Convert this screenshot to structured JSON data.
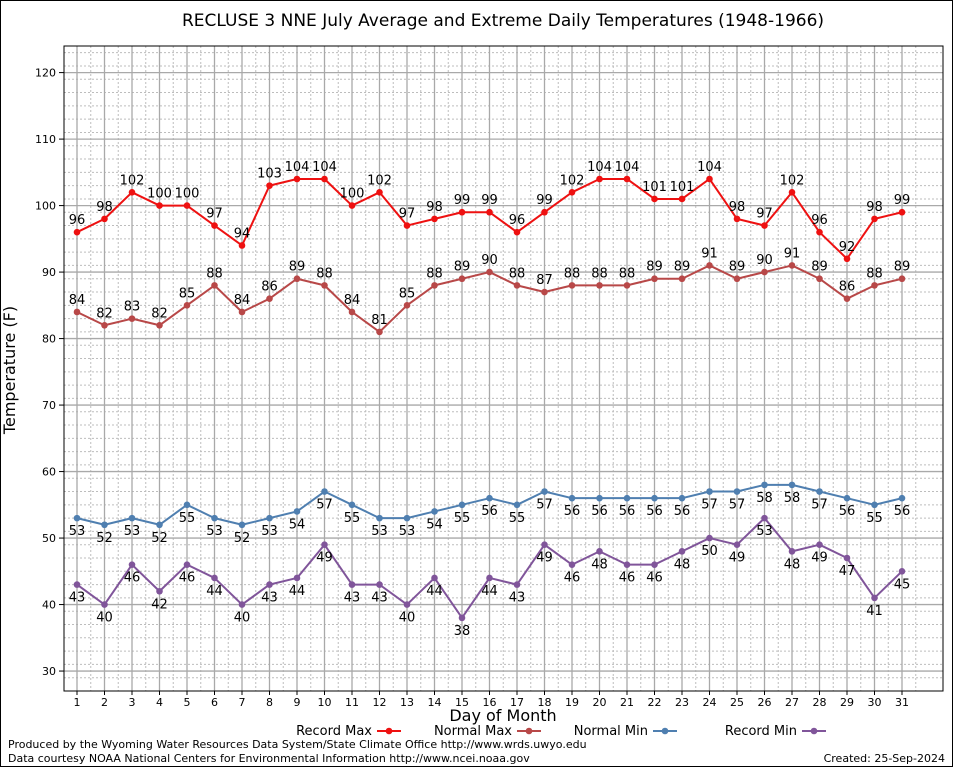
{
  "chart_data": {
    "type": "line",
    "title": "RECLUSE 3 NNE July Average and Extreme Daily Temperatures (1948-1966)",
    "xlabel": "Day of Month",
    "ylabel": "Temperature (F)",
    "ylim": [
      27,
      124
    ],
    "yticks": [
      30,
      40,
      50,
      60,
      70,
      80,
      90,
      100,
      110,
      120
    ],
    "x": [
      1,
      2,
      3,
      4,
      5,
      6,
      7,
      8,
      9,
      10,
      11,
      12,
      13,
      14,
      15,
      16,
      17,
      18,
      19,
      20,
      21,
      22,
      23,
      24,
      25,
      26,
      27,
      28,
      29,
      30,
      31
    ],
    "grid": true,
    "legend_position": "bottom",
    "series": [
      {
        "name": "Record Max",
        "color": "#ee1111",
        "label_pos": "above",
        "values": [
          96,
          98,
          102,
          100,
          100,
          97,
          94,
          103,
          104,
          104,
          100,
          102,
          97,
          98,
          99,
          99,
          96,
          99,
          102,
          104,
          104,
          101,
          101,
          104,
          98,
          97,
          102,
          96,
          92,
          98,
          99
        ]
      },
      {
        "name": "Normal Max",
        "color": "#b84848",
        "label_pos": "above",
        "values": [
          84,
          82,
          83,
          82,
          85,
          88,
          84,
          86,
          89,
          88,
          84,
          81,
          85,
          88,
          89,
          90,
          88,
          87,
          88,
          88,
          88,
          89,
          89,
          91,
          89,
          90,
          91,
          89,
          86,
          88,
          89
        ]
      },
      {
        "name": "Normal Min",
        "color": "#4f7fb0",
        "label_pos": "below",
        "values": [
          53,
          52,
          53,
          52,
          55,
          53,
          52,
          53,
          54,
          57,
          55,
          53,
          53,
          54,
          55,
          56,
          55,
          57,
          56,
          56,
          56,
          56,
          56,
          57,
          57,
          58,
          58,
          57,
          56,
          55,
          56
        ]
      },
      {
        "name": "Record Min",
        "color": "#80559a",
        "label_pos": "below",
        "values": [
          43,
          40,
          46,
          42,
          46,
          44,
          40,
          43,
          44,
          49,
          43,
          43,
          40,
          44,
          38,
          44,
          43,
          49,
          46,
          48,
          46,
          46,
          48,
          50,
          49,
          53,
          48,
          49,
          47,
          41,
          45
        ]
      }
    ]
  },
  "footer": {
    "credit_line1": "Produced by the Wyoming Water Resources Data System/State Climate Office http://www.wrds.uwyo.edu",
    "credit_line2": "Data courtesy NOAA National Centers for Environmental Information http://www.ncei.noaa.gov",
    "created": "Created:  25-Sep-2024"
  }
}
